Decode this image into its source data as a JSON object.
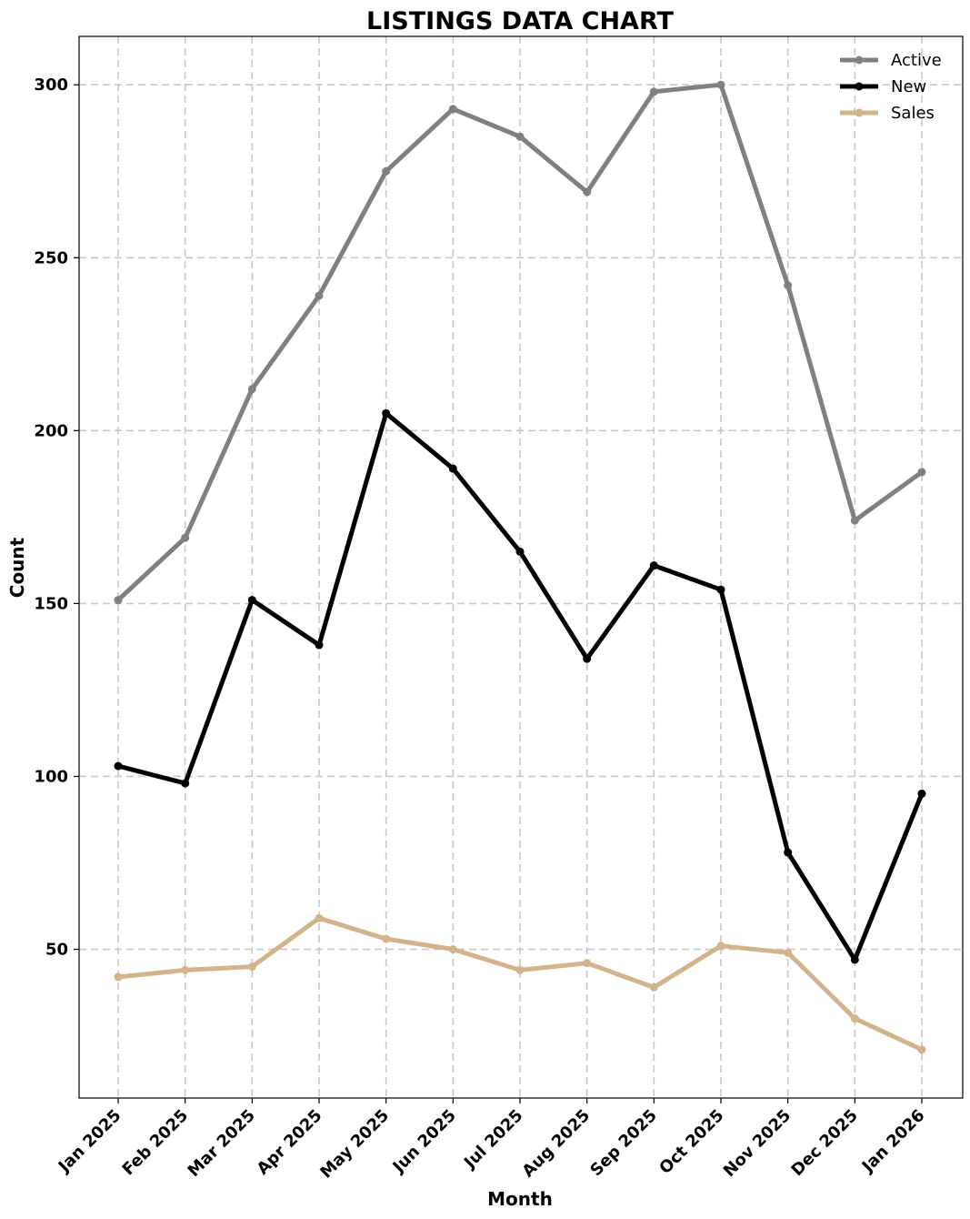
{
  "chart_data": {
    "type": "line",
    "title": "LISTINGS DATA CHART",
    "xlabel": "Month",
    "ylabel": "Count",
    "categories": [
      "Jan 2025",
      "Feb 2025",
      "Mar 2025",
      "Apr 2025",
      "May 2025",
      "Jun 2025",
      "Jul 2025",
      "Aug 2025",
      "Sep 2025",
      "Oct 2025",
      "Nov 2025",
      "Dec 2025",
      "Jan 2026"
    ],
    "ylim": [
      7,
      314
    ],
    "yticks": [
      50,
      100,
      150,
      200,
      250,
      300
    ],
    "grid": true,
    "legend_position": "top-right",
    "series": [
      {
        "name": "Active",
        "color": "#808080",
        "values": [
          151,
          169,
          212,
          239,
          275,
          293,
          285,
          269,
          298,
          300,
          242,
          174,
          188
        ]
      },
      {
        "name": "New",
        "color": "#000000",
        "values": [
          103,
          98,
          151,
          138,
          205,
          189,
          165,
          134,
          161,
          154,
          78,
          47,
          95
        ]
      },
      {
        "name": "Sales",
        "color": "#d2b48c",
        "values": [
          42,
          44,
          45,
          59,
          53,
          50,
          44,
          46,
          39,
          51,
          49,
          30,
          21
        ]
      }
    ]
  }
}
